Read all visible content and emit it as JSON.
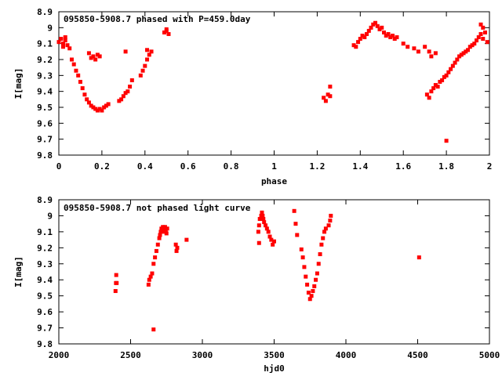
{
  "chart_data": [
    {
      "type": "scatter",
      "title": "095850-5908.7 phased with P=459.0day",
      "xlabel": "phase",
      "ylabel": "I[mag]",
      "xlim": [
        0,
        2
      ],
      "ylim": [
        8.9,
        9.8
      ],
      "y_inverted": true,
      "x_ticks": [
        "0",
        "0.2",
        "0.4",
        "0.6",
        "0.8",
        "1",
        "1.2",
        "1.4",
        "1.6",
        "1.8",
        "2"
      ],
      "y_ticks": [
        "8.9",
        "9",
        "9.1",
        "9.2",
        "9.3",
        "9.4",
        "9.5",
        "9.6",
        "9.7",
        "9.8"
      ],
      "color": "#ff0000",
      "points": [
        [
          0.0,
          9.09
        ],
        [
          0.01,
          9.07
        ],
        [
          0.02,
          9.1
        ],
        [
          0.03,
          9.08
        ],
        [
          0.04,
          9.11
        ],
        [
          0.03,
          9.06
        ],
        [
          0.02,
          9.12
        ],
        [
          0.05,
          9.13
        ],
        [
          0.06,
          9.2
        ],
        [
          0.07,
          9.23
        ],
        [
          0.08,
          9.27
        ],
        [
          0.09,
          9.3
        ],
        [
          0.1,
          9.34
        ],
        [
          0.11,
          9.38
        ],
        [
          0.12,
          9.42
        ],
        [
          0.13,
          9.45
        ],
        [
          0.14,
          9.47
        ],
        [
          0.15,
          9.49
        ],
        [
          0.16,
          9.5
        ],
        [
          0.17,
          9.51
        ],
        [
          0.18,
          9.52
        ],
        [
          0.19,
          9.51
        ],
        [
          0.2,
          9.52
        ],
        [
          0.21,
          9.5
        ],
        [
          0.22,
          9.49
        ],
        [
          0.23,
          9.48
        ],
        [
          0.14,
          9.16
        ],
        [
          0.15,
          9.19
        ],
        [
          0.16,
          9.18
        ],
        [
          0.17,
          9.2
        ],
        [
          0.18,
          9.17
        ],
        [
          0.19,
          9.18
        ],
        [
          0.28,
          9.46
        ],
        [
          0.29,
          9.45
        ],
        [
          0.3,
          9.43
        ],
        [
          0.31,
          9.41
        ],
        [
          0.32,
          9.4
        ],
        [
          0.33,
          9.37
        ],
        [
          0.34,
          9.33
        ],
        [
          0.31,
          9.15
        ],
        [
          0.38,
          9.3
        ],
        [
          0.39,
          9.27
        ],
        [
          0.4,
          9.24
        ],
        [
          0.41,
          9.2
        ],
        [
          0.42,
          9.17
        ],
        [
          0.41,
          9.14
        ],
        [
          0.43,
          9.15
        ],
        [
          0.49,
          9.03
        ],
        [
          0.5,
          9.02
        ],
        [
          0.51,
          9.04
        ],
        [
          0.5,
          9.01
        ],
        [
          1.23,
          9.44
        ],
        [
          1.24,
          9.46
        ],
        [
          1.25,
          9.42
        ],
        [
          1.26,
          9.37
        ],
        [
          1.26,
          9.43
        ],
        [
          1.37,
          9.11
        ],
        [
          1.38,
          9.12
        ],
        [
          1.39,
          9.09
        ],
        [
          1.4,
          9.07
        ],
        [
          1.41,
          9.05
        ],
        [
          1.42,
          9.06
        ],
        [
          1.43,
          9.04
        ],
        [
          1.44,
          9.02
        ],
        [
          1.45,
          9.0
        ],
        [
          1.46,
          8.98
        ],
        [
          1.47,
          8.97
        ],
        [
          1.48,
          8.99
        ],
        [
          1.49,
          9.01
        ],
        [
          1.5,
          9.0
        ],
        [
          1.51,
          9.03
        ],
        [
          1.52,
          9.05
        ],
        [
          1.53,
          9.04
        ],
        [
          1.54,
          9.06
        ],
        [
          1.55,
          9.05
        ],
        [
          1.56,
          9.07
        ],
        [
          1.57,
          9.06
        ],
        [
          1.6,
          9.1
        ],
        [
          1.62,
          9.12
        ],
        [
          1.65,
          9.13
        ],
        [
          1.67,
          9.15
        ],
        [
          1.7,
          9.12
        ],
        [
          1.72,
          9.15
        ],
        [
          1.73,
          9.18
        ],
        [
          1.75,
          9.16
        ],
        [
          1.71,
          9.42
        ],
        [
          1.72,
          9.44
        ],
        [
          1.73,
          9.4
        ],
        [
          1.74,
          9.38
        ],
        [
          1.75,
          9.36
        ],
        [
          1.76,
          9.37
        ],
        [
          1.77,
          9.34
        ],
        [
          1.78,
          9.33
        ],
        [
          1.79,
          9.31
        ],
        [
          1.8,
          9.3
        ],
        [
          1.81,
          9.28
        ],
        [
          1.82,
          9.26
        ],
        [
          1.83,
          9.24
        ],
        [
          1.84,
          9.22
        ],
        [
          1.85,
          9.2
        ],
        [
          1.86,
          9.18
        ],
        [
          1.87,
          9.17
        ],
        [
          1.88,
          9.16
        ],
        [
          1.89,
          9.15
        ],
        [
          1.9,
          9.14
        ],
        [
          1.91,
          9.12
        ],
        [
          1.92,
          9.11
        ],
        [
          1.93,
          9.1
        ],
        [
          1.94,
          9.08
        ],
        [
          1.95,
          9.06
        ],
        [
          1.96,
          9.04
        ],
        [
          1.97,
          9.07
        ],
        [
          1.98,
          9.03
        ],
        [
          1.99,
          9.09
        ],
        [
          1.8,
          9.71
        ],
        [
          1.96,
          8.98
        ],
        [
          1.97,
          9.0
        ]
      ]
    },
    {
      "type": "scatter",
      "title": "095850-5908.7 not phased light curve",
      "xlabel": "hjd0",
      "ylabel": "I[mag]",
      "xlim": [
        2000,
        5000
      ],
      "ylim": [
        8.9,
        9.8
      ],
      "y_inverted": true,
      "x_ticks": [
        "2000",
        "2500",
        "3000",
        "3500",
        "4000",
        "4500",
        "5000"
      ],
      "y_ticks": [
        "8.9",
        "9",
        "9.1",
        "9.2",
        "9.3",
        "9.4",
        "9.5",
        "9.6",
        "9.7",
        "9.8"
      ],
      "color": "#ff0000",
      "points": [
        [
          2395,
          9.47
        ],
        [
          2398,
          9.42
        ],
        [
          2400,
          9.37
        ],
        [
          2403,
          9.42
        ],
        [
          2625,
          9.43
        ],
        [
          2630,
          9.4
        ],
        [
          2640,
          9.38
        ],
        [
          2650,
          9.36
        ],
        [
          2660,
          9.3
        ],
        [
          2670,
          9.26
        ],
        [
          2680,
          9.22
        ],
        [
          2690,
          9.18
        ],
        [
          2700,
          9.14
        ],
        [
          2705,
          9.12
        ],
        [
          2710,
          9.1
        ],
        [
          2715,
          9.08
        ],
        [
          2720,
          9.09
        ],
        [
          2725,
          9.07
        ],
        [
          2730,
          9.08
        ],
        [
          2735,
          9.1
        ],
        [
          2740,
          9.07
        ],
        [
          2745,
          9.09
        ],
        [
          2750,
          9.11
        ],
        [
          2755,
          9.08
        ],
        [
          2660,
          9.71
        ],
        [
          2815,
          9.18
        ],
        [
          2820,
          9.22
        ],
        [
          2825,
          9.2
        ],
        [
          2890,
          9.15
        ],
        [
          3390,
          9.1
        ],
        [
          3395,
          9.06
        ],
        [
          3400,
          9.02
        ],
        [
          3410,
          9.0
        ],
        [
          3415,
          8.98
        ],
        [
          3420,
          9.0
        ],
        [
          3425,
          9.02
        ],
        [
          3430,
          9.04
        ],
        [
          3440,
          9.06
        ],
        [
          3450,
          9.08
        ],
        [
          3460,
          9.1
        ],
        [
          3470,
          9.13
        ],
        [
          3480,
          9.15
        ],
        [
          3490,
          9.18
        ],
        [
          3500,
          9.16
        ],
        [
          3395,
          9.17
        ],
        [
          3640,
          8.97
        ],
        [
          3650,
          9.05
        ],
        [
          3660,
          9.12
        ],
        [
          3690,
          9.21
        ],
        [
          3700,
          9.26
        ],
        [
          3710,
          9.32
        ],
        [
          3720,
          9.38
        ],
        [
          3730,
          9.43
        ],
        [
          3740,
          9.48
        ],
        [
          3750,
          9.52
        ],
        [
          3760,
          9.5
        ],
        [
          3770,
          9.47
        ],
        [
          3780,
          9.44
        ],
        [
          3790,
          9.4
        ],
        [
          3800,
          9.36
        ],
        [
          3810,
          9.3
        ],
        [
          3820,
          9.24
        ],
        [
          3830,
          9.18
        ],
        [
          3840,
          9.14
        ],
        [
          3850,
          9.1
        ],
        [
          3860,
          9.08
        ],
        [
          3880,
          9.06
        ],
        [
          3890,
          9.03
        ],
        [
          3895,
          9.0
        ],
        [
          4510,
          9.26
        ]
      ]
    }
  ]
}
